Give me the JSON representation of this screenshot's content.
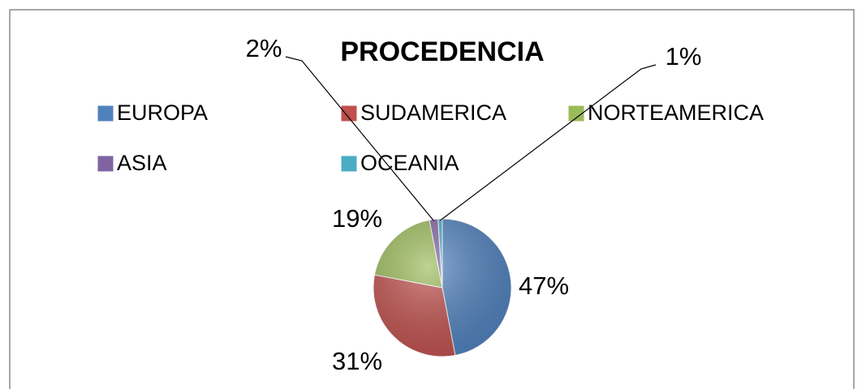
{
  "chart_data": {
    "type": "pie",
    "title": "PROCEDENCIA",
    "categories": [
      "EUROPA",
      "SUDAMERICA",
      "NORTEAMERICA",
      "ASIA",
      "OCEANIA"
    ],
    "values": [
      47,
      31,
      19,
      2,
      1
    ],
    "value_labels": [
      "47%",
      "31%",
      "19%",
      "2%",
      "1%"
    ],
    "colors": [
      "#4f81bd",
      "#c0504d",
      "#9bbb59",
      "#8064a2",
      "#4bacc6"
    ],
    "legend": "top"
  }
}
